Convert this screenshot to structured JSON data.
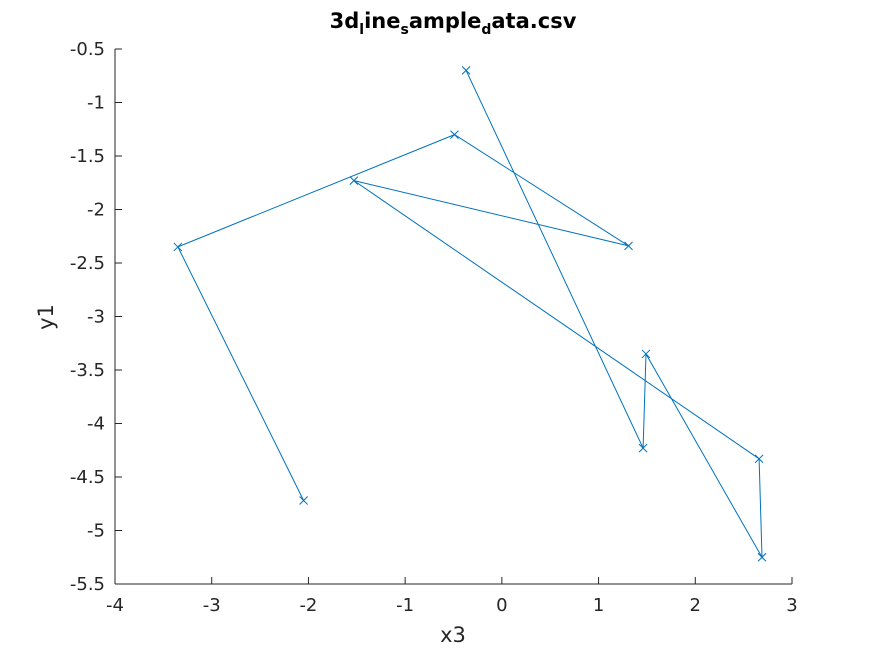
{
  "chart_data": {
    "type": "line",
    "title_parts": [
      {
        "text": "3d",
        "sub": false
      },
      {
        "text": "l",
        "sub": true
      },
      {
        "text": "ine",
        "sub": false
      },
      {
        "text": "s",
        "sub": true
      },
      {
        "text": "ample",
        "sub": false
      },
      {
        "text": "d",
        "sub": true
      },
      {
        "text": "ata.csv",
        "sub": false
      }
    ],
    "xlabel": "x3",
    "ylabel": "y1",
    "xlim": [
      -4,
      3
    ],
    "ylim": [
      -5.5,
      -0.5
    ],
    "xticks": [
      -4,
      -3,
      -2,
      -1,
      0,
      1,
      2,
      3
    ],
    "xtick_labels": [
      "-4",
      "-3",
      "-2",
      "-1",
      "0",
      "1",
      "2",
      "3"
    ],
    "yticks": [
      -5.5,
      -5,
      -4.5,
      -4,
      -3.5,
      -3,
      -2.5,
      -2,
      -1.5,
      -1,
      -0.5
    ],
    "ytick_labels": [
      "-5.5",
      "-5",
      "-4.5",
      "-4",
      "-3.5",
      "-3",
      "-2.5",
      "-2",
      "-1.5",
      "-1",
      "-0.5"
    ],
    "grid": false,
    "series": [
      {
        "color": "#0072BD",
        "marker": "x",
        "x": [
          -2.05,
          -3.35,
          -0.49,
          1.31,
          -1.53,
          2.66,
          2.69,
          1.49,
          1.46,
          -0.37
        ],
        "y": [
          -4.72,
          -2.35,
          -1.3,
          -2.34,
          -1.73,
          -4.33,
          -5.25,
          -3.35,
          -4.23,
          -0.7
        ]
      }
    ]
  }
}
